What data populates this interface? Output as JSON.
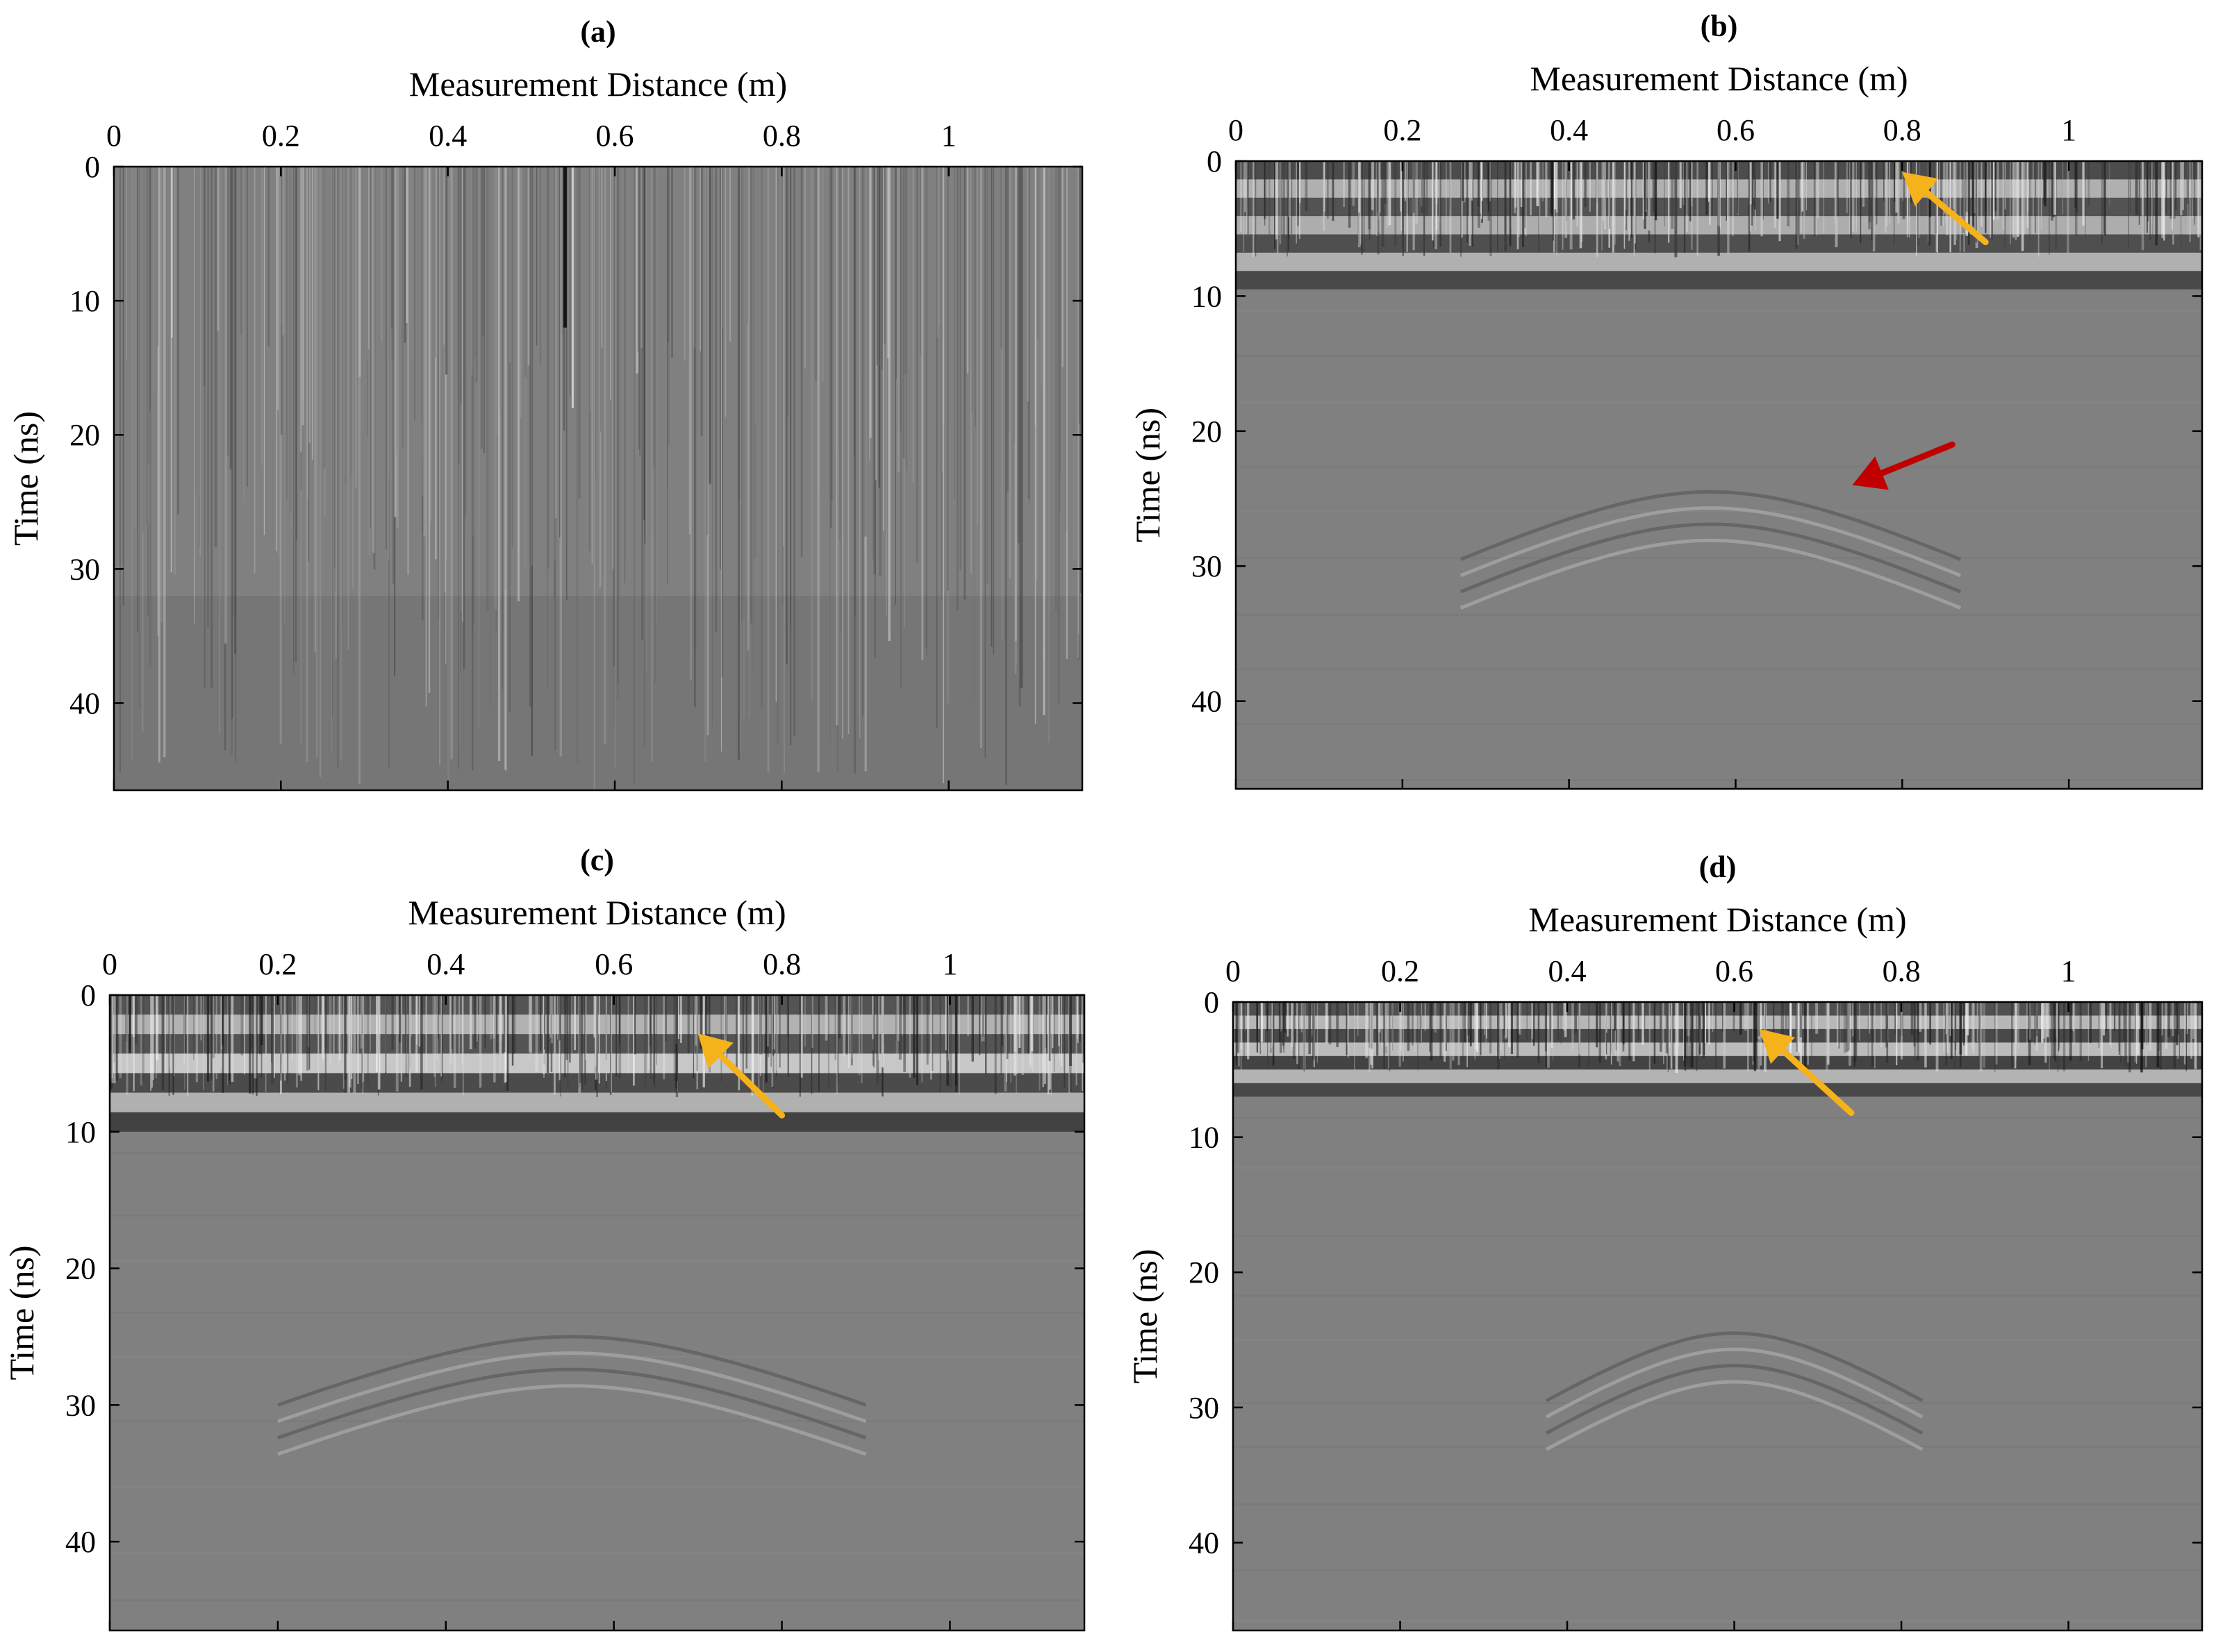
{
  "figure": {
    "colors": {
      "background": "#808080",
      "frame": "#000000",
      "arrow_surface": "#F5B21A",
      "arrow_target": "#C00000"
    }
  },
  "chart_data": [
    {
      "type": "heatmap",
      "panel": "(a)",
      "title": "(a)",
      "xlabel": "Measurement Distance (m)",
      "ylabel": "Time (ns)",
      "xlim": [
        0,
        1.16
      ],
      "ylim": [
        0,
        46.5
      ],
      "y_reversed": true,
      "x_axis_location": "top",
      "xticks": [
        0,
        0.2,
        0.4,
        0.6,
        0.8,
        1
      ],
      "xtick_labels": [
        "0",
        "0.2",
        "0.4",
        "0.6",
        "0.8",
        "1"
      ],
      "yticks": [
        0,
        10,
        20,
        30,
        40
      ],
      "ytick_labels": [
        "0",
        "10",
        "20",
        "30",
        "40"
      ],
      "colormap": "gray",
      "grid": false,
      "features": [
        {
          "kind": "vertical_noise",
          "x_range": [
            0,
            1.16
          ],
          "t_range": [
            0,
            46.5
          ],
          "note": "raw data, strong vertical streaks"
        }
      ],
      "annotations": []
    },
    {
      "type": "heatmap",
      "panel": "(b)",
      "title": "(b)",
      "xlabel": "Measurement Distance (m)",
      "ylabel": "Time (ns)",
      "xlim": [
        0,
        1.16
      ],
      "ylim": [
        0,
        46.5
      ],
      "y_reversed": true,
      "x_axis_location": "top",
      "xticks": [
        0,
        0.2,
        0.4,
        0.6,
        0.8,
        1
      ],
      "xtick_labels": [
        "0",
        "0.2",
        "0.4",
        "0.6",
        "0.8",
        "1"
      ],
      "yticks": [
        0,
        10,
        20,
        30,
        40
      ],
      "ytick_labels": [
        "0",
        "10",
        "20",
        "30",
        "40"
      ],
      "colormap": "gray",
      "grid": false,
      "features": [
        {
          "kind": "surface_reflection",
          "t_range": [
            0,
            9.5
          ]
        },
        {
          "kind": "hyperbola",
          "apex_x": 0.57,
          "apex_t": 24.5,
          "width": 0.6
        }
      ],
      "annotations": [
        {
          "kind": "arrow",
          "color": "#F5B21A",
          "from": [
            0.9,
            6.0
          ],
          "to": [
            0.8,
            0.8
          ]
        },
        {
          "kind": "arrow",
          "color": "#C00000",
          "from": [
            0.86,
            21.0
          ],
          "to": [
            0.74,
            24.0
          ]
        }
      ]
    },
    {
      "type": "heatmap",
      "panel": "(c)",
      "title": "(c)",
      "xlabel": "Measurement Distance (m)",
      "ylabel": "Time (ns)",
      "xlim": [
        0,
        1.16
      ],
      "ylim": [
        0,
        46.5
      ],
      "y_reversed": true,
      "x_axis_location": "top",
      "xticks": [
        0,
        0.2,
        0.4,
        0.6,
        0.8,
        1
      ],
      "xtick_labels": [
        "0",
        "0.2",
        "0.4",
        "0.6",
        "0.8",
        "1"
      ],
      "yticks": [
        0,
        10,
        20,
        30,
        40
      ],
      "ytick_labels": [
        "0",
        "10",
        "20",
        "30",
        "40"
      ],
      "colormap": "gray",
      "grid": false,
      "features": [
        {
          "kind": "surface_reflection",
          "t_range": [
            0,
            10
          ]
        },
        {
          "kind": "hyperbola",
          "apex_x": 0.55,
          "apex_t": 25.0,
          "width": 0.7
        }
      ],
      "annotations": [
        {
          "kind": "arrow",
          "color": "#F5B21A",
          "from": [
            0.8,
            8.8
          ],
          "to": [
            0.7,
            2.8
          ]
        }
      ]
    },
    {
      "type": "heatmap",
      "panel": "(d)",
      "title": "(d)",
      "xlabel": "Measurement Distance (m)",
      "ylabel": "Time (ns)",
      "xlim": [
        0,
        1.16
      ],
      "ylim": [
        0,
        46.5
      ],
      "y_reversed": true,
      "x_axis_location": "top",
      "xticks": [
        0,
        0.2,
        0.4,
        0.6,
        0.8,
        1
      ],
      "xtick_labels": [
        "0",
        "0.2",
        "0.4",
        "0.6",
        "0.8",
        "1"
      ],
      "yticks": [
        0,
        10,
        20,
        30,
        40
      ],
      "ytick_labels": [
        "0",
        "10",
        "20",
        "30",
        "40"
      ],
      "colormap": "gray",
      "grid": false,
      "features": [
        {
          "kind": "surface_reflection",
          "t_range": [
            0,
            7
          ]
        },
        {
          "kind": "hyperbola",
          "apex_x": 0.6,
          "apex_t": 24.5,
          "width": 0.45
        }
      ],
      "annotations": [
        {
          "kind": "arrow",
          "color": "#F5B21A",
          "from": [
            0.74,
            8.2
          ],
          "to": [
            0.63,
            2.0
          ]
        }
      ]
    }
  ]
}
